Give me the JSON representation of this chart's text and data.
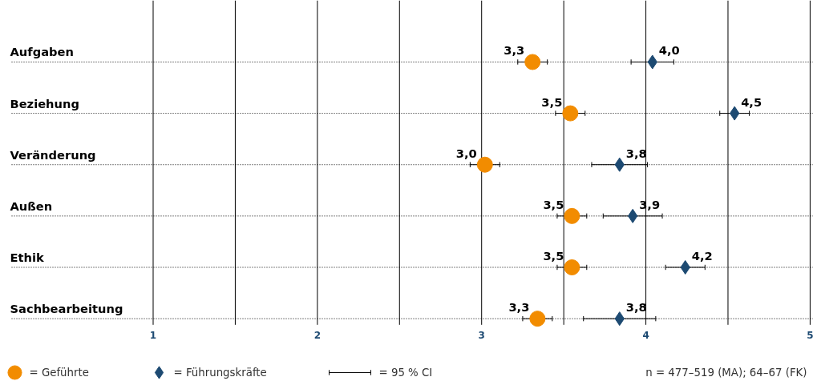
{
  "chart_data": {
    "type": "scatter",
    "orientation": "horizontal",
    "categories": [
      "Aufgaben",
      "Beziehung",
      "Veränderung",
      "Außen",
      "Ethik",
      "Sachbearbeitung"
    ],
    "series": [
      {
        "name": "= Geführte",
        "color": "#f28c00",
        "marker": "circle",
        "values": [
          3.31,
          3.54,
          3.02,
          3.55,
          3.55,
          3.34
        ],
        "errors": [
          0.09,
          0.09,
          0.09,
          0.09,
          0.09,
          0.09
        ],
        "value_labels": [
          "3,3",
          "3,5",
          "3,0",
          "3,5",
          "3,5",
          "3,3"
        ]
      },
      {
        "name": "= Führungskräfte",
        "color": "#1d4a72",
        "marker": "diamond",
        "values": [
          4.04,
          4.54,
          3.84,
          3.92,
          4.24,
          3.84
        ],
        "errors": [
          0.13,
          0.09,
          0.17,
          0.18,
          0.12,
          0.22
        ],
        "value_labels": [
          "4,0",
          "4,5",
          "3,8",
          "3,9",
          "4,2",
          "3,8"
        ]
      }
    ],
    "xlim": [
      0.07,
      5.02
    ],
    "xticks": [
      1,
      {
        "value": 1.5,
        "label": null
      },
      2,
      {
        "value": 2.5,
        "label": null
      },
      3,
      {
        "value": 3.5,
        "label": null
      },
      4,
      {
        "value": 4.5,
        "label": null
      },
      5
    ],
    "grid": true,
    "legend": "bottom",
    "annotations": [
      "= 95 % CI",
      "n = 477–519 (MA); 64–67 (FK)"
    ]
  }
}
